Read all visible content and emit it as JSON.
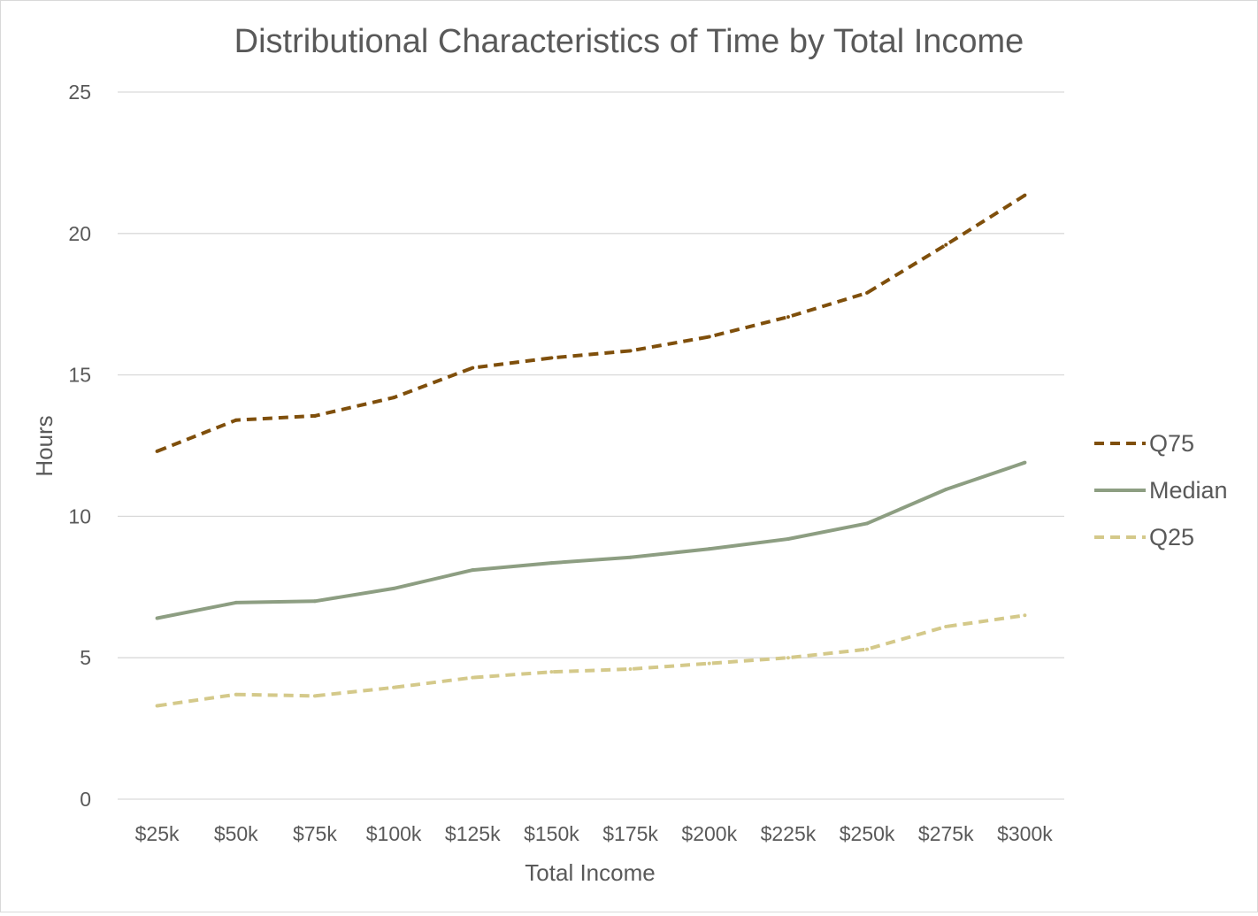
{
  "chart_data": {
    "type": "line",
    "title": "Distributional Characteristics of Time by Total Income",
    "xlabel": "Total Income",
    "ylabel": "Hours",
    "categories": [
      "$25k",
      "$50k",
      "$75k",
      "$100k",
      "$125k",
      "$150k",
      "$175k",
      "$200k",
      "$225k",
      "$250k",
      "$275k",
      "$300k"
    ],
    "ylim": [
      0,
      25
    ],
    "yticks": [
      0,
      5,
      10,
      15,
      20,
      25
    ],
    "grid": true,
    "legend_position": "right",
    "series": [
      {
        "name": "Q75",
        "values": [
          12.3,
          13.4,
          13.55,
          14.2,
          15.25,
          15.6,
          15.85,
          16.35,
          17.05,
          17.9,
          19.6,
          21.35
        ],
        "color": "#7f4f0b",
        "dash": "dashed"
      },
      {
        "name": "Median",
        "values": [
          6.4,
          6.95,
          7.0,
          7.45,
          8.1,
          8.35,
          8.55,
          8.85,
          9.2,
          9.75,
          10.95,
          11.9
        ],
        "color": "#8d9e82",
        "dash": "solid"
      },
      {
        "name": "Q25",
        "values": [
          3.3,
          3.7,
          3.65,
          3.95,
          4.3,
          4.5,
          4.6,
          4.8,
          5.0,
          5.3,
          6.1,
          6.5
        ],
        "color": "#d4c98a",
        "dash": "dashed"
      }
    ]
  }
}
